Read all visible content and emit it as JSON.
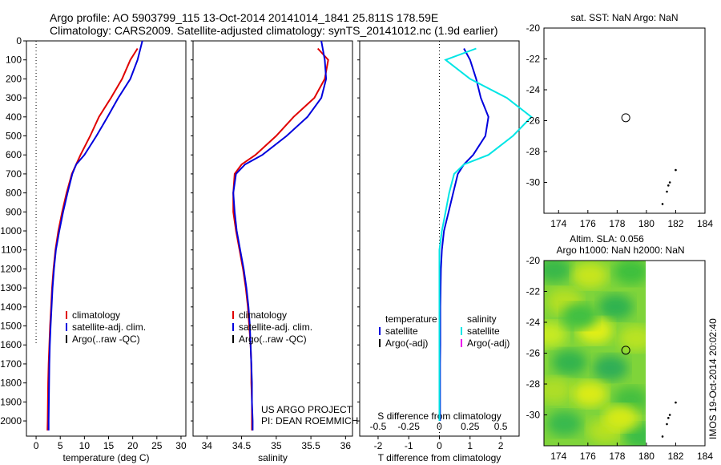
{
  "header": {
    "line1": "Argo profile: AO 5903799_115 13-Oct-2014 20141014_1841 25.811S 178.59E",
    "line2": "Climatology: CARS2009. Satellite-adjusted climatology: synTS_20141012.nc (1.9d earlier)"
  },
  "colors": {
    "red": "#e00000",
    "blue": "#0000dd",
    "cyan": "#00e5e5",
    "magenta": "#ee00ee",
    "black": "#000000"
  },
  "chart_data": [
    {
      "id": "temp",
      "type": "line",
      "xlabel": "temperature (deg C)",
      "xlim": [
        -2,
        31
      ],
      "ylim": [
        2080,
        0
      ],
      "xticks": [
        0,
        5,
        10,
        15,
        20,
        25,
        30
      ],
      "yticks": [
        0,
        100,
        200,
        300,
        400,
        500,
        600,
        700,
        800,
        900,
        1000,
        1100,
        1200,
        1300,
        1400,
        1500,
        1600,
        1700,
        1800,
        1900,
        2000
      ],
      "zero_line": {
        "x": 0,
        "y_to": 1600
      },
      "series": [
        {
          "name": "climatology",
          "color": "red",
          "x": [
            21.0,
            19.5,
            17.8,
            15.5,
            13.0,
            11.2,
            9.2,
            8.3,
            7.4,
            6.3,
            5.4,
            4.6,
            4.0,
            3.6,
            3.3,
            3.1,
            2.9,
            2.75,
            2.6,
            2.5,
            2.45,
            2.4,
            2.35
          ],
          "y": [
            40,
            100,
            200,
            300,
            400,
            500,
            600,
            650,
            700,
            800,
            900,
            1000,
            1100,
            1200,
            1300,
            1400,
            1500,
            1600,
            1700,
            1800,
            1900,
            2000,
            2050
          ]
        },
        {
          "name": "satellite-adj. clim.",
          "color": "blue",
          "x": [
            22.0,
            21.0,
            19.5,
            17.0,
            14.8,
            12.5,
            10.0,
            8.3,
            7.5,
            6.5,
            5.6,
            4.8,
            4.1,
            3.7,
            3.4,
            3.2,
            3.0,
            2.85,
            2.75,
            2.7,
            2.65,
            2.6,
            2.6
          ],
          "y": [
            0,
            100,
            200,
            300,
            400,
            500,
            600,
            650,
            700,
            800,
            900,
            1000,
            1100,
            1200,
            1300,
            1400,
            1500,
            1600,
            1700,
            1800,
            1900,
            2000,
            2050
          ]
        }
      ],
      "legend": [
        "climatology",
        "satellite-adj. clim.",
        "Argo(..raw -QC)"
      ],
      "legend_colors": [
        "red",
        "blue",
        "black"
      ]
    },
    {
      "id": "sal",
      "type": "line",
      "xlabel": "salinity",
      "xlim": [
        33.8,
        36.1
      ],
      "ylim": [
        2080,
        0
      ],
      "xticks": [
        34,
        34.5,
        35,
        35.5,
        36
      ],
      "series": [
        {
          "name": "climatology",
          "color": "red",
          "x": [
            35.6,
            35.75,
            35.7,
            35.55,
            35.25,
            35.0,
            34.7,
            34.5,
            34.4,
            34.38,
            34.38,
            34.42,
            34.47,
            34.52,
            34.56,
            34.59,
            34.61,
            34.63,
            34.64,
            34.64,
            34.65,
            34.65,
            34.65
          ],
          "y": [
            40,
            100,
            200,
            300,
            400,
            500,
            600,
            650,
            700,
            800,
            900,
            1000,
            1100,
            1200,
            1300,
            1400,
            1500,
            1600,
            1700,
            1800,
            1900,
            2000,
            2050
          ]
        },
        {
          "name": "satellite-adj. clim.",
          "color": "blue",
          "x": [
            35.65,
            35.7,
            35.72,
            35.65,
            35.45,
            35.15,
            34.8,
            34.55,
            34.42,
            34.38,
            34.4,
            34.43,
            34.48,
            34.53,
            34.57,
            34.6,
            34.62,
            34.63,
            34.64,
            34.65,
            34.65,
            34.66,
            34.66
          ],
          "y": [
            0,
            100,
            200,
            300,
            400,
            500,
            600,
            650,
            700,
            800,
            900,
            1000,
            1100,
            1200,
            1300,
            1400,
            1500,
            1600,
            1700,
            1800,
            1900,
            2000,
            2050
          ]
        }
      ],
      "legend": [
        "climatology",
        "satellite-adj. clim.",
        "Argo(..raw -QC)"
      ],
      "legend_colors": [
        "red",
        "blue",
        "black"
      ],
      "annotation": [
        "US ARGO PROJECT",
        "PI: DEAN ROEMMICH"
      ]
    },
    {
      "id": "diff",
      "type": "line",
      "xlabel": "T difference from climatology",
      "xlabel_top": "S difference from climatology",
      "xlim": [
        -2.6,
        2.6
      ],
      "ylim": [
        2080,
        0
      ],
      "xticks": [
        -2,
        -1,
        0,
        1,
        2
      ],
      "xticks_top": [
        -0.5,
        -0.25,
        0,
        0.25,
        0.5
      ],
      "xtick_labels_top": [
        "-0.5",
        "-0.25",
        "0",
        "0.25",
        "0.5"
      ],
      "zero_line": {
        "x": 0
      },
      "series": [
        {
          "name": "temperature satellite",
          "color": "blue",
          "x": [
            0.8,
            1.0,
            1.2,
            1.35,
            1.6,
            1.5,
            1.1,
            0.8,
            0.6,
            0.45,
            0.3,
            0.15,
            0.08,
            0.05,
            0.04,
            0.03,
            0.03,
            0.03,
            0.02,
            0.02,
            0.02,
            0.02
          ],
          "y": [
            40,
            100,
            200,
            300,
            400,
            500,
            600,
            650,
            700,
            800,
            900,
            1000,
            1100,
            1200,
            1300,
            1400,
            1500,
            1600,
            1700,
            1800,
            1900,
            2000
          ]
        },
        {
          "name": "salinity satellite",
          "color": "cyan",
          "x": [
            0.3,
            0.05,
            0.25,
            0.55,
            0.75,
            0.6,
            0.4,
            0.2,
            0.12,
            0.08,
            0.05,
            0.02,
            0.0,
            0.0,
            0.0,
            0.0,
            0.0,
            0.0,
            0.0,
            0.0,
            0.0,
            0.0
          ],
          "y": [
            40,
            100,
            200,
            300,
            400,
            500,
            600,
            650,
            700,
            800,
            900,
            1000,
            1100,
            1200,
            1300,
            1400,
            1500,
            1600,
            1700,
            1800,
            1900,
            2000
          ]
        }
      ],
      "legend_temp": {
        "title": "temperature",
        "items": [
          "satellite",
          "Argo(-adj)"
        ],
        "colors": [
          "blue",
          "black"
        ]
      },
      "legend_sal": {
        "title": "salinity",
        "items": [
          "satellite",
          "Argo(-adj)"
        ],
        "colors": [
          "cyan",
          "magenta"
        ]
      }
    },
    {
      "id": "map_sst",
      "type": "scatter",
      "title": "sat. SST: NaN Argo: NaN",
      "xlim": [
        173,
        184
      ],
      "ylim": [
        -32,
        -20
      ],
      "xticks": [
        174,
        176,
        178,
        180,
        182,
        184
      ],
      "yticks": [
        -20,
        -22,
        -24,
        -26,
        -28,
        -30
      ],
      "marker": {
        "x": 178.59,
        "y": -25.81
      },
      "dots": [
        [
          182.0,
          -29.2
        ],
        [
          181.6,
          -30.0
        ],
        [
          181.5,
          -30.2
        ],
        [
          181.4,
          -30.6
        ],
        [
          181.1,
          -31.4
        ]
      ]
    },
    {
      "id": "map_sla",
      "type": "heatmap",
      "title1": "Altim. SLA: 0.056",
      "title2": "Argo h1000: NaN h2000: NaN",
      "xlim": [
        173,
        184
      ],
      "ylim": [
        -32,
        -20
      ],
      "xticks": [
        174,
        176,
        178,
        180,
        182,
        184
      ],
      "yticks": [
        -20,
        -22,
        -24,
        -26,
        -28,
        -30
      ],
      "field_xmax": 180,
      "marker": {
        "x": 178.59,
        "y": -25.81
      },
      "dots": [
        [
          182.0,
          -29.2
        ],
        [
          181.6,
          -30.0
        ],
        [
          181.5,
          -30.2
        ],
        [
          181.4,
          -30.6
        ],
        [
          181.1,
          -31.4
        ]
      ]
    }
  ],
  "stamp": "IMOS 19-Oct-2014 20:02:40"
}
